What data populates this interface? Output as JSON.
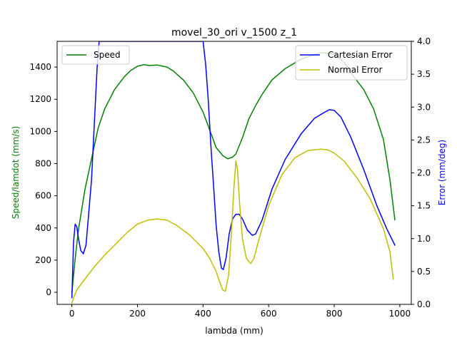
{
  "chart_data": {
    "type": "line",
    "title": "movel_30_ori v_1500 z_1",
    "xlabel": "lambda (mm)",
    "ylabel_left": "Speed/lamdot (mm/s)",
    "ylabel_right": "Error (mm/deg)",
    "xlim": [
      -45,
      1035
    ],
    "ylim_left": [
      -75,
      1560
    ],
    "ylim_right": [
      0,
      4.0
    ],
    "xticks": [
      0,
      200,
      400,
      600,
      800,
      1000
    ],
    "yticks_left": [
      0,
      200,
      400,
      600,
      800,
      1000,
      1200,
      1400
    ],
    "yticks_right": [
      0.0,
      0.5,
      1.0,
      1.5,
      2.0,
      2.5,
      3.0,
      3.5,
      4.0
    ],
    "left_legend": {
      "position": "upper-left",
      "entries": [
        "Speed"
      ]
    },
    "right_legend": {
      "position": "upper-right",
      "entries": [
        "Cartesian Error",
        "Normal Error"
      ]
    },
    "series": [
      {
        "name": "Speed",
        "axis": "left",
        "color": "#008000",
        "x": [
          0,
          10,
          20,
          40,
          60,
          80,
          100,
          130,
          160,
          180,
          200,
          220,
          235,
          260,
          290,
          310,
          340,
          370,
          400,
          420,
          440,
          460,
          475,
          490,
          500,
          520,
          540,
          560,
          580,
          610,
          650,
          700,
          760,
          800,
          830,
          860,
          890,
          920,
          950,
          970,
          985
        ],
        "y": [
          0,
          210,
          390,
          640,
          830,
          1020,
          1140,
          1260,
          1340,
          1380,
          1405,
          1415,
          1410,
          1413,
          1400,
          1375,
          1320,
          1240,
          1120,
          1010,
          900,
          850,
          830,
          840,
          860,
          960,
          1080,
          1160,
          1230,
          1320,
          1390,
          1450,
          1490,
          1480,
          1430,
          1340,
          1260,
          1140,
          950,
          700,
          450
        ]
      },
      {
        "name": "Cartesian Error",
        "axis": "right",
        "color": "#0000ff",
        "x": [
          0,
          5,
          10,
          15,
          20,
          27,
          35,
          43,
          50,
          60,
          70,
          77,
          83,
          400,
          408,
          416,
          424,
          432,
          440,
          448,
          456,
          462,
          470,
          480,
          490,
          500,
          510,
          520,
          535,
          550,
          560,
          580,
          610,
          650,
          700,
          740,
          770,
          785,
          800,
          820,
          850,
          890,
          930,
          960,
          985
        ],
        "y": [
          0.1,
          0.95,
          1.22,
          1.18,
          1.0,
          0.82,
          0.77,
          0.9,
          1.3,
          1.9,
          2.9,
          3.6,
          4.0,
          4.0,
          3.65,
          3.1,
          2.4,
          1.8,
          1.2,
          0.8,
          0.55,
          0.53,
          0.7,
          1.08,
          1.3,
          1.37,
          1.37,
          1.3,
          1.13,
          1.05,
          1.07,
          1.28,
          1.75,
          2.2,
          2.6,
          2.83,
          2.92,
          2.96,
          2.95,
          2.85,
          2.55,
          2.05,
          1.5,
          1.15,
          0.9
        ]
      },
      {
        "name": "Normal Error",
        "axis": "right",
        "color": "#bfbf00",
        "x": [
          0,
          5,
          15,
          30,
          50,
          70,
          100,
          140,
          170,
          200,
          230,
          260,
          290,
          320,
          360,
          400,
          420,
          440,
          450,
          460,
          468,
          478,
          486,
          494,
          500,
          505,
          512,
          520,
          532,
          545,
          555,
          570,
          600,
          640,
          680,
          720,
          760,
          780,
          800,
          830,
          870,
          910,
          950,
          970,
          980
        ],
        "y": [
          0.02,
          0.1,
          0.22,
          0.32,
          0.45,
          0.58,
          0.75,
          0.95,
          1.1,
          1.22,
          1.28,
          1.3,
          1.28,
          1.2,
          1.05,
          0.85,
          0.7,
          0.5,
          0.35,
          0.22,
          0.2,
          0.45,
          1.05,
          1.75,
          2.18,
          2.05,
          1.5,
          1.0,
          0.7,
          0.62,
          0.7,
          0.98,
          1.5,
          1.97,
          2.23,
          2.34,
          2.36,
          2.35,
          2.3,
          2.18,
          1.92,
          1.6,
          1.15,
          0.8,
          0.38
        ]
      }
    ]
  }
}
